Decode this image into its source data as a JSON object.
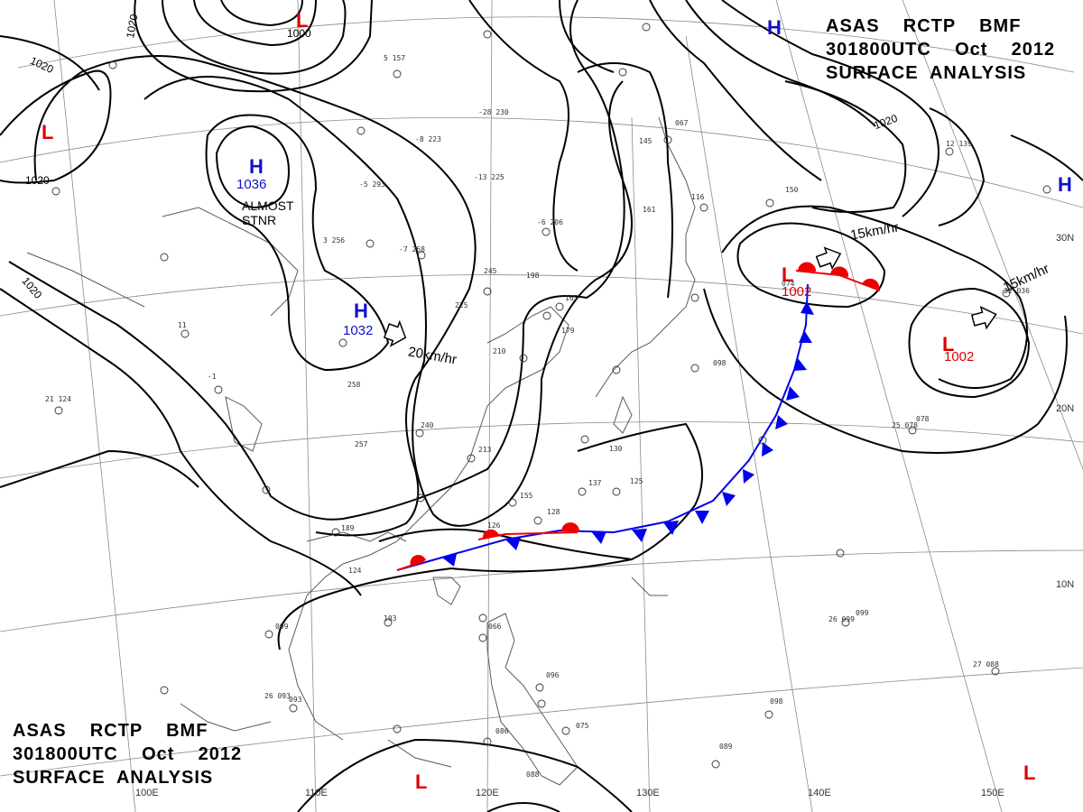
{
  "header": {
    "line1": "ASAS    RCTP    BMF",
    "line2": "301800UTC    Oct    2012",
    "line3": "SURFACE  ANALYSIS"
  },
  "colors": {
    "high": "#1010cc",
    "low": "#dd0000",
    "isobar": "#000000",
    "grid": "#888888",
    "coast": "#555555",
    "cold_front": "#0000ee",
    "warm_front": "#ee0000"
  },
  "pressure_systems": [
    {
      "type": "H",
      "value": "1036",
      "id": "high-mongolia"
    },
    {
      "type": "H",
      "value": "1032",
      "id": "high-china"
    },
    {
      "type": "L",
      "value": "1002",
      "id": "low-east-pacific"
    },
    {
      "type": "L",
      "value": "1002",
      "id": "low-frontal"
    },
    {
      "type": "H",
      "value": "",
      "id": "high-north"
    },
    {
      "type": "H",
      "value": "",
      "id": "high-east"
    },
    {
      "type": "L",
      "value": "",
      "id": "low-north"
    },
    {
      "type": "L",
      "value": "",
      "id": "low-west"
    },
    {
      "type": "L",
      "value": "",
      "id": "low-south"
    },
    {
      "type": "L",
      "value": "",
      "id": "low-southeast"
    }
  ],
  "isobar_labels": [
    "1000",
    "1020",
    "1020",
    "1020",
    "1020",
    "1020"
  ],
  "annotations": {
    "almost_stnr": "ALMOST\nSTNR",
    "motion_1": "20km/hr",
    "motion_2": "15km/hr",
    "motion_3": "15km/hr"
  },
  "longitude_labels": [
    "100E",
    "110E",
    "120E",
    "130E",
    "140E",
    "150E"
  ],
  "latitude_labels": [
    "30N",
    "20N",
    "10N"
  ],
  "stations": [
    "5 157",
    "-28 230",
    "-8 223",
    "-13 225",
    "-5 293",
    "-6 206",
    "3 256",
    "-7 268",
    "245",
    "198",
    "165",
    "225",
    "179",
    "210",
    "258",
    "240",
    "257",
    "213",
    "130",
    "137",
    "125",
    "155",
    "128",
    "126",
    "189",
    "124",
    "099",
    "103",
    "093",
    "066",
    "096",
    "086",
    "075",
    "088",
    "099",
    "098",
    "089",
    "078",
    "074",
    "150",
    "116",
    "161",
    "145",
    "067",
    "098",
    "12 139",
    "22 036",
    "25 078",
    "26 099",
    "26 093",
    "27 088",
    "21 124",
    "11",
    "-1"
  ]
}
